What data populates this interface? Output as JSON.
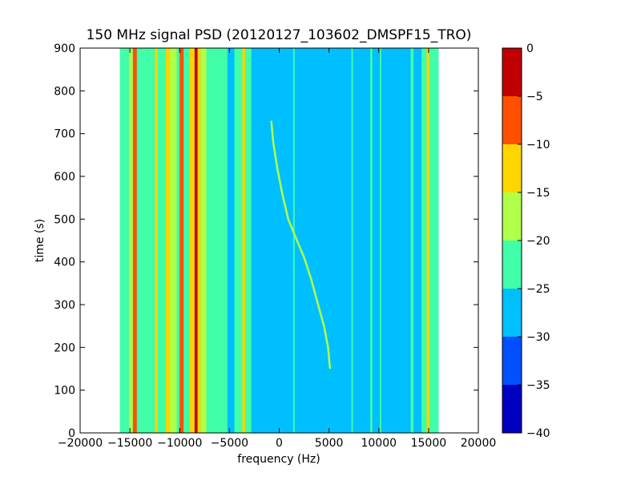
{
  "chart_data": {
    "type": "heatmap",
    "title": "150 MHz signal PSD (20120127_103602_DMSPF15_TRO)",
    "xlabel": "frequency (Hz)",
    "ylabel": "time (s)",
    "xlim": [
      -20000,
      20000
    ],
    "ylim": [
      0,
      900
    ],
    "x_ticks": [
      -20000,
      -15000,
      -10000,
      -5000,
      0,
      5000,
      10000,
      15000,
      20000
    ],
    "x_tick_labels": [
      "−20000",
      "−15000",
      "−10000",
      "−5000",
      "0",
      "5000",
      "10000",
      "15000",
      "20000"
    ],
    "y_ticks": [
      0,
      100,
      200,
      300,
      400,
      500,
      600,
      700,
      800,
      900
    ],
    "y_tick_labels": [
      "0",
      "100",
      "200",
      "300",
      "400",
      "500",
      "600",
      "700",
      "800",
      "900"
    ],
    "data_extent_x": [
      -16000,
      16000
    ],
    "background_level": -27.5,
    "colorbar": {
      "levels": [
        -40,
        -35,
        -30,
        -25,
        -20,
        -15,
        -10,
        -5,
        0
      ],
      "tick_labels": [
        "−40",
        "−35",
        "−30",
        "−25",
        "−20",
        "−15",
        "−10",
        "−5",
        "0"
      ],
      "colors": [
        "#0000c0",
        "#0050ff",
        "#00bfff",
        "#40ffa8",
        "#b0ff48",
        "#ffd500",
        "#ff5000",
        "#c00000"
      ]
    },
    "bands": [
      {
        "x_from": -16000,
        "x_to": -15100,
        "level": -22.5
      },
      {
        "x_from": -15100,
        "x_to": -14700,
        "level": -17.5
      },
      {
        "x_from": -14700,
        "x_to": -14300,
        "level": -7.5
      },
      {
        "x_from": -14300,
        "x_to": -12500,
        "level": -22.5
      },
      {
        "x_from": -12500,
        "x_to": -12200,
        "level": -12.5
      },
      {
        "x_from": -12200,
        "x_to": -11400,
        "level": -22.5
      },
      {
        "x_from": -11400,
        "x_to": -11000,
        "level": -12.5
      },
      {
        "x_from": -11000,
        "x_to": -10300,
        "level": -17.5
      },
      {
        "x_from": -10300,
        "x_to": -10000,
        "level": -22.5
      },
      {
        "x_from": -10000,
        "x_to": -9600,
        "level": -7.5
      },
      {
        "x_from": -9600,
        "x_to": -9000,
        "level": -22.5
      },
      {
        "x_from": -9000,
        "x_to": -8500,
        "level": -12.5
      },
      {
        "x_from": -8500,
        "x_to": -8200,
        "level": -2.5
      },
      {
        "x_from": -8200,
        "x_to": -7900,
        "level": -12.5
      },
      {
        "x_from": -7900,
        "x_to": -7300,
        "level": -17.5
      },
      {
        "x_from": -7300,
        "x_to": -5200,
        "level": -22.5
      },
      {
        "x_from": -5200,
        "x_to": -4500,
        "level": -27.5
      },
      {
        "x_from": -4500,
        "x_to": -3700,
        "level": -22.5
      },
      {
        "x_from": -3700,
        "x_to": -3400,
        "level": -12.5
      },
      {
        "x_from": -3400,
        "x_to": -2800,
        "level": -22.5
      },
      {
        "x_from": 1400,
        "x_to": 1550,
        "level": -22.5
      },
      {
        "x_from": 7250,
        "x_to": 7400,
        "level": -22.5
      },
      {
        "x_from": 9150,
        "x_to": 9350,
        "level": -22.5
      },
      {
        "x_from": 10100,
        "x_to": 10250,
        "level": -22.5
      },
      {
        "x_from": 13200,
        "x_to": 13500,
        "level": -22.5
      },
      {
        "x_from": 13500,
        "x_to": 14300,
        "level": -27.5
      },
      {
        "x_from": 14300,
        "x_to": 14800,
        "level": -22.5
      },
      {
        "x_from": 14800,
        "x_to": 15100,
        "level": -12.5
      },
      {
        "x_from": 15100,
        "x_to": 16000,
        "level": -22.5
      }
    ],
    "drift_trace": {
      "level": -17.5,
      "points": [
        [
          -800,
          730
        ],
        [
          -600,
          680
        ],
        [
          -200,
          620
        ],
        [
          300,
          560
        ],
        [
          900,
          500
        ],
        [
          1600,
          460
        ],
        [
          2500,
          410
        ],
        [
          3200,
          360
        ],
        [
          3900,
          300
        ],
        [
          4500,
          250
        ],
        [
          4900,
          200
        ],
        [
          5100,
          150
        ]
      ]
    }
  }
}
